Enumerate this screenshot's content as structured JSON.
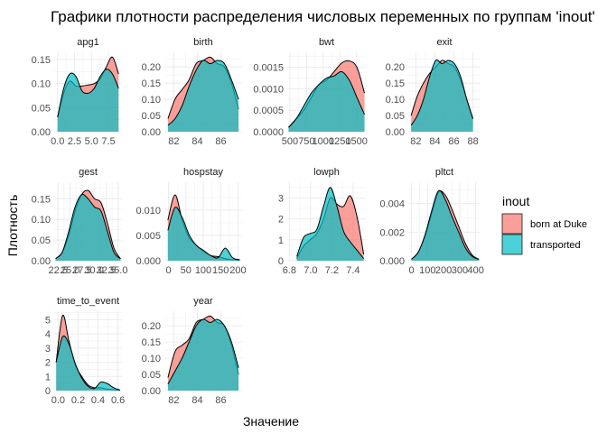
{
  "chart_data": {
    "type": "area",
    "title": "Графики плотности распределения числовых переменных по группам 'inout'",
    "xlabel": "Значение",
    "ylabel": "Плотность",
    "grid": true,
    "legend": {
      "title": "inout",
      "position": "right",
      "entries": [
        {
          "label": "born at Duke",
          "color": "#F8766D"
        },
        {
          "label": "transported",
          "color": "#00BFC4"
        }
      ]
    },
    "series_names": [
      "born at Duke",
      "transported"
    ],
    "panels": [
      {
        "name": "apg1",
        "xlim": [
          -0.5,
          9.5
        ],
        "ylim": [
          0,
          0.165
        ],
        "xticks": [
          0,
          2.5,
          5,
          7.5
        ],
        "xtick_labels": [
          "0.0",
          "2.5",
          "5.0",
          "7.5"
        ],
        "yticks": [
          0,
          0.05,
          0.1,
          0.15
        ],
        "ytick_labels": [
          "0.00",
          "0.05",
          "0.10",
          "0.15"
        ],
        "x_range": [
          0,
          9
        ],
        "series": [
          {
            "name": "born at Duke",
            "y": [
              0.03,
              0.08,
              0.105,
              0.095,
              0.095,
              0.097,
              0.1,
              0.11,
              0.135,
              0.155,
              0.12
            ]
          },
          {
            "name": "transported",
            "y": [
              0.03,
              0.09,
              0.12,
              0.115,
              0.085,
              0.08,
              0.09,
              0.115,
              0.13,
              0.12,
              0.09
            ]
          }
        ]
      },
      {
        "name": "birth",
        "xlim": [
          81.2,
          87.8
        ],
        "ylim": [
          0,
          0.245
        ],
        "xticks": [
          82,
          84,
          86
        ],
        "xtick_labels": [
          "82",
          "84",
          "86"
        ],
        "yticks": [
          0,
          0.05,
          0.1,
          0.15,
          0.2
        ],
        "ytick_labels": [
          "0.00",
          "0.05",
          "0.10",
          "0.15",
          "0.20"
        ],
        "x_range": [
          81.5,
          87.5
        ],
        "series": [
          {
            "name": "born at Duke",
            "y": [
              0.04,
              0.1,
              0.13,
              0.16,
              0.21,
              0.22,
              0.23,
              0.21,
              0.2,
              0.15,
              0.07
            ]
          },
          {
            "name": "transported",
            "y": [
              0.02,
              0.04,
              0.08,
              0.14,
              0.19,
              0.22,
              0.21,
              0.22,
              0.21,
              0.16,
              0.1
            ]
          }
        ]
      },
      {
        "name": "bwt",
        "xlim": [
          460,
          1640
        ],
        "ylim": [
          0,
          0.00185
        ],
        "xticks": [
          500,
          750,
          1000,
          1250,
          1500
        ],
        "xtick_labels": [
          "500",
          "750",
          "1000",
          "1250",
          "1500"
        ],
        "yticks": [
          0,
          0.0005,
          0.001,
          0.0015
        ],
        "ytick_labels": [
          "0.0000",
          "0.0005",
          "0.0010",
          "0.0015"
        ],
        "x_range": [
          480,
          1620
        ],
        "series": [
          {
            "name": "born at Duke",
            "y": [
              0.0001,
              0.0003,
              0.0005,
              0.0008,
              0.0011,
              0.0012,
              0.0014,
              0.0016,
              0.00165,
              0.0015,
              0.0009
            ]
          },
          {
            "name": "transported",
            "y": [
              0.0001,
              0.0003,
              0.0006,
              0.0009,
              0.0011,
              0.00125,
              0.0013,
              0.0014,
              0.0012,
              0.0008,
              0.0004
            ]
          }
        ]
      },
      {
        "name": "exit",
        "xlim": [
          81.2,
          88.8
        ],
        "ylim": [
          0,
          0.245
        ],
        "xticks": [
          82,
          84,
          86,
          88
        ],
        "xtick_labels": [
          "82",
          "84",
          "86",
          "88"
        ],
        "yticks": [
          0,
          0.05,
          0.1,
          0.15,
          0.2
        ],
        "ytick_labels": [
          "0.00",
          "0.05",
          "0.10",
          "0.15",
          "0.20"
        ],
        "x_range": [
          81.5,
          88
        ],
        "series": [
          {
            "name": "born at Duke",
            "y": [
              0.05,
              0.11,
              0.15,
              0.18,
              0.2,
              0.22,
              0.21,
              0.2,
              0.16,
              0.1,
              0.04
            ]
          },
          {
            "name": "transported",
            "y": [
              0.02,
              0.05,
              0.1,
              0.17,
              0.22,
              0.21,
              0.22,
              0.21,
              0.17,
              0.1,
              0.04
            ]
          }
        ]
      },
      {
        "name": "gest",
        "xlim": [
          21.7,
          35.8
        ],
        "ylim": [
          0,
          0.19
        ],
        "xticks": [
          22.5,
          25,
          27.5,
          30,
          32.5,
          35
        ],
        "xtick_labels": [
          "22.5",
          "25.0",
          "27.5",
          "30.0",
          "32.5",
          "35.0"
        ],
        "yticks": [
          0,
          0.05,
          0.1,
          0.15
        ],
        "ytick_labels": [
          "0.00",
          "0.05",
          "0.10",
          "0.15"
        ],
        "x_range": [
          22,
          35.5
        ],
        "series": [
          {
            "name": "born at Duke",
            "y": [
              0.005,
              0.02,
              0.06,
              0.12,
              0.16,
              0.17,
              0.15,
              0.14,
              0.09,
              0.03,
              0.005
            ]
          },
          {
            "name": "transported",
            "y": [
              0.005,
              0.02,
              0.07,
              0.13,
              0.16,
              0.15,
              0.13,
              0.12,
              0.07,
              0.02,
              0.005
            ]
          }
        ]
      },
      {
        "name": "hospstay",
        "xlim": [
          -12,
          212
        ],
        "ylim": [
          0,
          0.0155
        ],
        "xticks": [
          0,
          50,
          100,
          150,
          200
        ],
        "xtick_labels": [
          "0",
          "50",
          "100",
          "150",
          "200"
        ],
        "yticks": [
          0,
          0.005,
          0.01
        ],
        "ytick_labels": [
          "0.000",
          "0.005",
          "0.010"
        ],
        "x_range": [
          -2,
          205
        ],
        "series": [
          {
            "name": "born at Duke",
            "y": [
              0.008,
              0.013,
              0.008,
              0.0045,
              0.003,
              0.0018,
              0.001,
              0.0008,
              0.0004,
              0.0002,
              0.0001
            ]
          },
          {
            "name": "transported",
            "y": [
              0.006,
              0.0105,
              0.0085,
              0.005,
              0.003,
              0.002,
              0.001,
              0.0006,
              0.0025,
              0.0006,
              0.0002
            ]
          }
        ]
      },
      {
        "name": "lowph",
        "xlim": [
          6.78,
          7.52
        ],
        "ylim": [
          0,
          3.75
        ],
        "xticks": [
          6.8,
          7.0,
          7.2,
          7.4
        ],
        "xtick_labels": [
          "6.8",
          "7.0",
          "7.2",
          "7.4"
        ],
        "yticks": [
          0,
          1,
          2,
          3
        ],
        "ytick_labels": [
          "0",
          "1",
          "2",
          "3"
        ],
        "x_range": [
          6.87,
          7.5
        ],
        "series": [
          {
            "name": "born at Duke",
            "y": [
              0.1,
              0.7,
              1.0,
              1.3,
              2.0,
              3.0,
              2.7,
              2.6,
              3.1,
              2.1,
              0.3
            ]
          },
          {
            "name": "transported",
            "y": [
              0.2,
              1.1,
              1.3,
              1.5,
              2.6,
              3.5,
              2.6,
              1.4,
              0.9,
              0.5,
              0.1
            ]
          }
        ]
      },
      {
        "name": "pltct",
        "xlim": [
          -20,
          430
        ],
        "ylim": [
          0,
          0.0055
        ],
        "xticks": [
          0,
          100,
          200,
          300,
          400
        ],
        "xtick_labels": [
          "0",
          "100",
          "200",
          "300",
          "400"
        ],
        "yticks": [
          0,
          0.002,
          0.004
        ],
        "ytick_labels": [
          "0.000",
          "0.002",
          "0.004"
        ],
        "x_range": [
          0,
          420
        ],
        "series": [
          {
            "name": "born at Duke",
            "y": [
              0.0001,
              0.0006,
              0.0017,
              0.0033,
              0.0048,
              0.0046,
              0.0036,
              0.0024,
              0.0012,
              0.0004,
              0.0001
            ]
          },
          {
            "name": "transported",
            "y": [
              0.0001,
              0.0006,
              0.0018,
              0.0035,
              0.0049,
              0.0043,
              0.0031,
              0.002,
              0.0009,
              0.0003,
              0.0001
            ]
          }
        ]
      },
      {
        "name": "time_to_event",
        "xlim": [
          -0.04,
          0.64
        ],
        "ylim": [
          0,
          5.6
        ],
        "xticks": [
          0,
          0.2,
          0.4,
          0.6
        ],
        "xtick_labels": [
          "0.0",
          "0.2",
          "0.4",
          "0.6"
        ],
        "yticks": [
          0,
          1,
          2,
          3,
          4,
          5
        ],
        "ytick_labels": [
          "0",
          "1",
          "2",
          "3",
          "4",
          "5"
        ],
        "x_range": [
          -0.02,
          0.62
        ],
        "series": [
          {
            "name": "born at Duke",
            "y": [
              2.0,
              5.3,
              3.5,
              1.8,
              1.0,
              0.4,
              0.2,
              0.2,
              0.1,
              0.05,
              0.02
            ]
          },
          {
            "name": "transported",
            "y": [
              2.0,
              3.8,
              3.3,
              1.9,
              0.9,
              0.3,
              0.15,
              0.6,
              0.5,
              0.2,
              0.05
            ]
          }
        ]
      },
      {
        "name": "year",
        "xlim": [
          81.2,
          87.8
        ],
        "ylim": [
          0,
          0.245
        ],
        "xticks": [
          82,
          84,
          86
        ],
        "xtick_labels": [
          "82",
          "84",
          "86"
        ],
        "yticks": [
          0,
          0.05,
          0.1,
          0.15,
          0.2
        ],
        "ytick_labels": [
          "0.00",
          "0.05",
          "0.10",
          "0.15",
          "0.20"
        ],
        "x_range": [
          81.5,
          87.5
        ],
        "series": [
          {
            "name": "born at Duke",
            "y": [
              0.04,
              0.12,
              0.14,
              0.16,
              0.21,
              0.22,
              0.23,
              0.21,
              0.2,
              0.14,
              0.05
            ]
          },
          {
            "name": "transported",
            "y": [
              0.02,
              0.06,
              0.1,
              0.15,
              0.2,
              0.22,
              0.21,
              0.22,
              0.2,
              0.15,
              0.07
            ]
          }
        ]
      }
    ]
  }
}
